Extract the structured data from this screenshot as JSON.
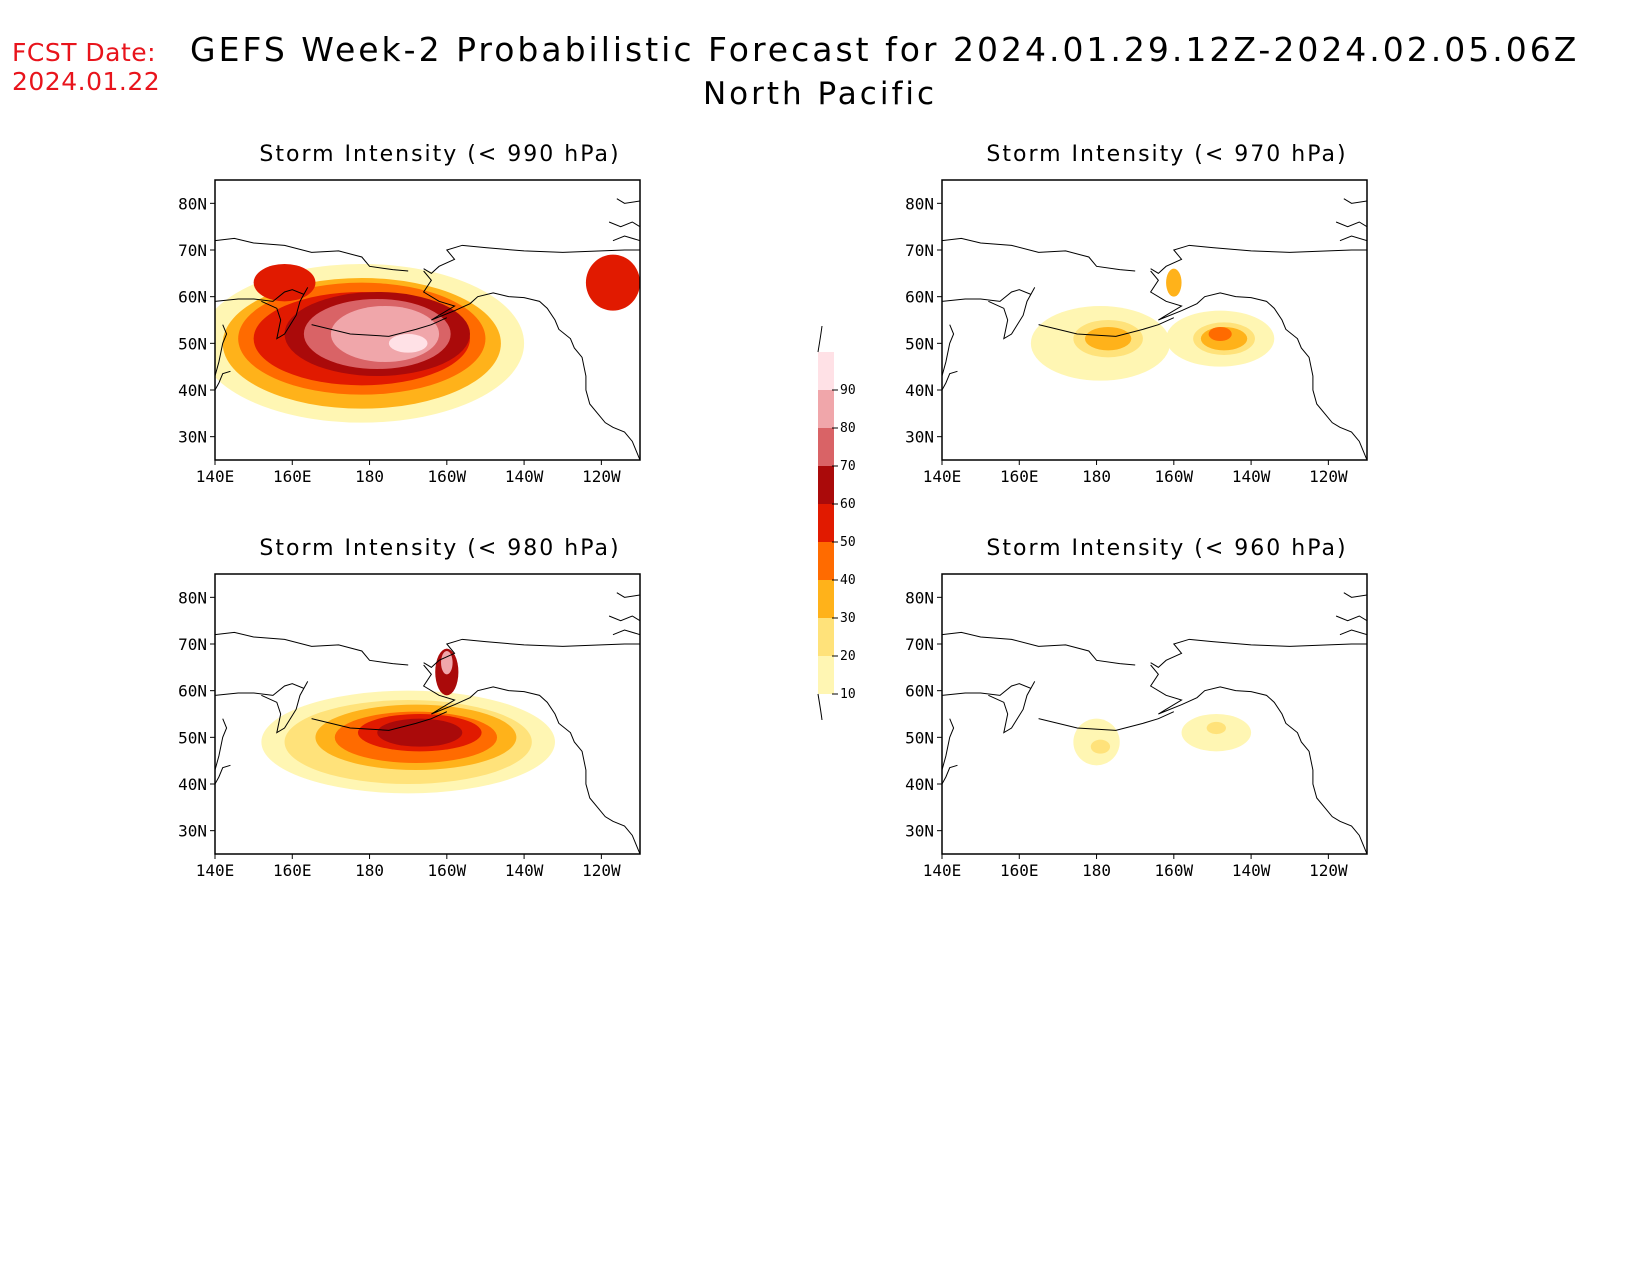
{
  "fcst_label": "FCST Date:",
  "fcst_date": "2024.01.22",
  "title": "GEFS Week-2 Probabilistic Forecast for 2024.01.29.12Z-2024.02.05.06Z",
  "subtitle": "North Pacific",
  "lat_labels": [
    "80N",
    "70N",
    "60N",
    "50N",
    "40N",
    "30N"
  ],
  "lon_labels": [
    "140E",
    "160E",
    "180",
    "160W",
    "140W",
    "120W"
  ],
  "colorbar": {
    "levels": [
      "10",
      "20",
      "30",
      "40",
      "50",
      "60",
      "70",
      "80",
      "90"
    ],
    "colors": [
      "#fff6b3",
      "#ffe27a",
      "#ffb21a",
      "#ff6b00",
      "#e11a00",
      "#aa0a0a",
      "#d96366",
      "#f0a6aa",
      "#ffe1e6"
    ]
  },
  "panels": [
    {
      "id": "p990",
      "title": "Storm Intensity (< 990 hPa)",
      "level": "990",
      "blobs": [
        {
          "cx": 178,
          "cy": 50,
          "rx": 42,
          "ry": 17,
          "v": 1
        },
        {
          "cx": 178,
          "cy": 50,
          "rx": 36,
          "ry": 14,
          "v": 3
        },
        {
          "cx": 178,
          "cy": 51,
          "rx": 32,
          "ry": 12,
          "v": 4
        },
        {
          "cx": 178,
          "cy": 51,
          "rx": 28,
          "ry": 10,
          "v": 5
        },
        {
          "cx": 182,
          "cy": 52,
          "rx": 24,
          "ry": 9,
          "v": 6
        },
        {
          "cx": 182,
          "cy": 52,
          "rx": 19,
          "ry": 7.5,
          "v": 7
        },
        {
          "cx": 184,
          "cy": 52,
          "rx": 14,
          "ry": 6,
          "v": 8
        },
        {
          "cx": 190,
          "cy": 50,
          "rx": 5,
          "ry": 2,
          "v": 9
        },
        {
          "cx": 243,
          "cy": 63,
          "rx": 7,
          "ry": 6,
          "v": 5
        },
        {
          "cx": 158,
          "cy": 63,
          "rx": 8,
          "ry": 4,
          "v": 5
        }
      ]
    },
    {
      "id": "p970",
      "title": "Storm Intensity (< 970 hPa)",
      "level": "970",
      "blobs": [
        {
          "cx": 181,
          "cy": 50,
          "rx": 18,
          "ry": 8,
          "v": 1
        },
        {
          "cx": 183,
          "cy": 51,
          "rx": 9,
          "ry": 4,
          "v": 2
        },
        {
          "cx": 183,
          "cy": 51,
          "rx": 6,
          "ry": 2.5,
          "v": 3
        },
        {
          "cx": 212,
          "cy": 51,
          "rx": 14,
          "ry": 6,
          "v": 1
        },
        {
          "cx": 213,
          "cy": 51,
          "rx": 8,
          "ry": 3.5,
          "v": 2
        },
        {
          "cx": 213,
          "cy": 51,
          "rx": 6,
          "ry": 2.5,
          "v": 3
        },
        {
          "cx": 212,
          "cy": 52,
          "rx": 3,
          "ry": 1.5,
          "v": 4
        },
        {
          "cx": 200,
          "cy": 63,
          "rx": 2,
          "ry": 3,
          "v": 3
        }
      ]
    },
    {
      "id": "p980",
      "title": "Storm Intensity (< 980 hPa)",
      "level": "980",
      "blobs": [
        {
          "cx": 190,
          "cy": 49,
          "rx": 38,
          "ry": 11,
          "v": 1
        },
        {
          "cx": 190,
          "cy": 49,
          "rx": 32,
          "ry": 9,
          "v": 2
        },
        {
          "cx": 192,
          "cy": 50,
          "rx": 26,
          "ry": 7,
          "v": 3
        },
        {
          "cx": 192,
          "cy": 50,
          "rx": 21,
          "ry": 5.5,
          "v": 4
        },
        {
          "cx": 193,
          "cy": 51,
          "rx": 16,
          "ry": 4,
          "v": 5
        },
        {
          "cx": 193,
          "cy": 51,
          "rx": 11,
          "ry": 3,
          "v": 6
        },
        {
          "cx": 200,
          "cy": 64,
          "rx": 3,
          "ry": 5,
          "v": 6
        },
        {
          "cx": 200,
          "cy": 66,
          "rx": 1.5,
          "ry": 2.5,
          "v": 8
        }
      ]
    },
    {
      "id": "p960",
      "title": "Storm Intensity (< 960 hPa)",
      "level": "960",
      "blobs": [
        {
          "cx": 180,
          "cy": 49,
          "rx": 6,
          "ry": 5,
          "v": 1
        },
        {
          "cx": 181,
          "cy": 48,
          "rx": 2.5,
          "ry": 1.5,
          "v": 2
        },
        {
          "cx": 211,
          "cy": 51,
          "rx": 9,
          "ry": 4,
          "v": 1
        },
        {
          "cx": 211,
          "cy": 52,
          "rx": 2.5,
          "ry": 1.3,
          "v": 2
        }
      ]
    }
  ]
}
